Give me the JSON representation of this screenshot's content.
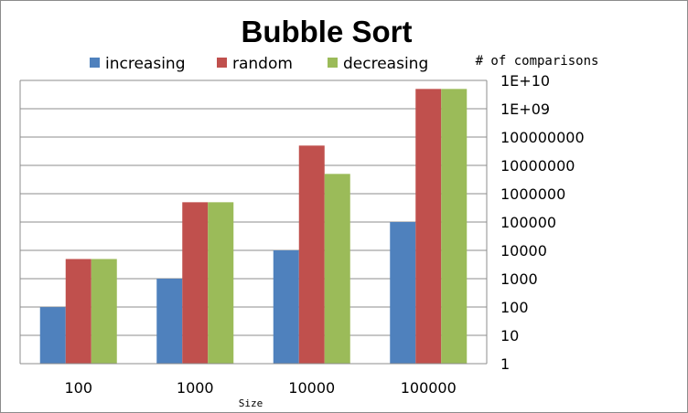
{
  "chart_data": {
    "type": "bar",
    "title": "Bubble Sort",
    "xlabel": "Size",
    "ylabel": "# of comparisons",
    "y_scale": "log",
    "ylim": [
      1,
      10000000000
    ],
    "y_tick_labels": [
      "1",
      "10",
      "100",
      "1000",
      "10000",
      "100000",
      "1000000",
      "10000000",
      "100000000",
      "1E+09",
      "1E+10"
    ],
    "categories": [
      "100",
      "1000",
      "10000",
      "100000"
    ],
    "series": [
      {
        "name": "increasing",
        "color": "#4f81bd",
        "values": [
          99,
          999,
          9999,
          99999
        ]
      },
      {
        "name": "random",
        "color": "#c0504d",
        "values": [
          4950,
          499500,
          49995000,
          4999950000
        ]
      },
      {
        "name": "decreasing",
        "color": "#9bbb59",
        "values": [
          4950,
          499500,
          4999500,
          4999950000
        ]
      }
    ],
    "grid": true,
    "legend_position": "top"
  }
}
